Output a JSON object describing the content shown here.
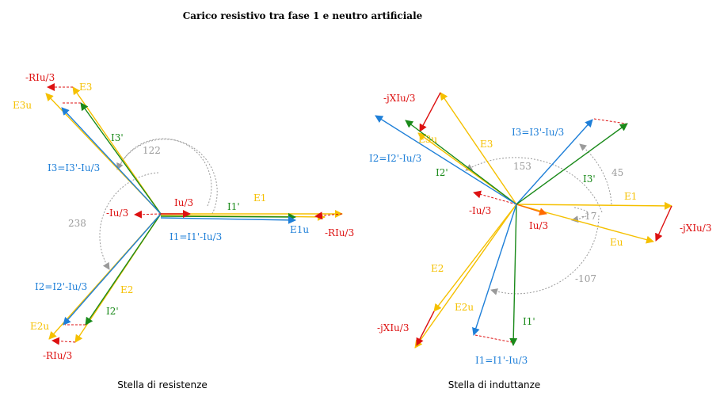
{
  "title": "Carico resistivo tra fase 1 e neutro artificiale",
  "colors": {
    "yellow": "#f5c000",
    "green": "#1a8a1a",
    "blue": "#1e7fd8",
    "red": "#dd1111",
    "orange": "#ff6a00",
    "gray": "#9a9a9a"
  },
  "left": {
    "caption": "Stella di resistenze",
    "labels": {
      "riu_tl": "-RIu/3",
      "e3": "E3",
      "e3u": "E3u",
      "i3p": "I3'",
      "i3": "I3=I3'-Iu/3",
      "a122": "122",
      "a238": "238",
      "iu3": "Iu/3",
      "miu3": "-Iu/3",
      "i1p": "I1'",
      "e1": "E1",
      "e1u": "E1u",
      "riu_r": "-RIu/3",
      "i1": "I1=I1'-Iu/3",
      "i2": "I2=I2'-Iu/3",
      "e2": "E2",
      "i2p": "I2'",
      "e2u": "E2u",
      "riu_bl": "-RIu/3"
    }
  },
  "right": {
    "caption": "Stella di induttanze",
    "labels": {
      "jx_tl": "-jXIu/3",
      "e3u": "E3u",
      "e3": "E3",
      "i2": "I2=I2'-Iu/3",
      "i2p": "I2'",
      "a153": "153",
      "i3": "I3=I3'-Iu/3",
      "a45": "45",
      "i3p": "I3'",
      "e1": "E1",
      "jx_r": "-jXIu/3",
      "miu3": "-Iu/3",
      "iu3": "Iu/3",
      "am17": "-17",
      "eu": "Eu",
      "am107": "-107",
      "e2": "E2",
      "e2u": "E2u",
      "jx_bl": "-jXIu/3",
      "i1p": "I1'",
      "i1": "I1=I1'-Iu/3"
    }
  }
}
